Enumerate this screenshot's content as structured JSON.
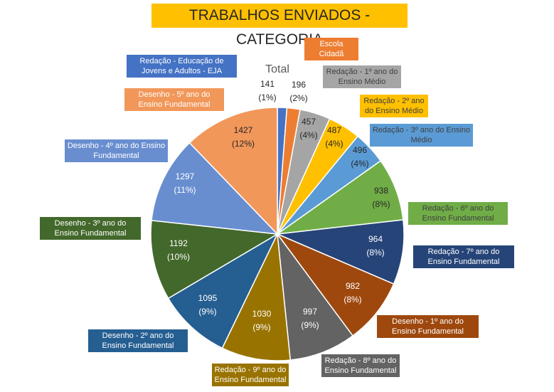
{
  "chart_data": {
    "type": "pie",
    "title": "TRABALHOS ENVIADOS - CATEGORIA",
    "series_name": "Total",
    "categories": [
      "Redação - Educação de Jovens e Adultos - EJA",
      "Escola Cidadã",
      "Redação - 1º ano do Ensino Médio",
      "Redação - 2º ano do Ensino Médio",
      "Redação - 3º ano do Ensino Médio",
      "Redação - 6º ano do Ensino Fundamental",
      "Redação - 7º ano do Ensino Fundamental",
      "Desenho - 1º ano do Ensino Fundamental",
      "Redação - 8º ano do Ensino Fundamental",
      "Redação - 9º ano do Ensino Fundamental",
      "Desenho - 2º ano do Ensino Fundamental",
      "Desenho - 3º ano do Ensino Fundamental",
      "Desenho - 4º ano do Ensino Fundamental",
      "Desenho - 5º ano do Ensino Fundamental"
    ],
    "values": [
      141,
      196,
      457,
      487,
      496,
      938,
      964,
      982,
      997,
      1030,
      1095,
      1192,
      1297,
      1427
    ],
    "value_labels": [
      "141\n(1%)",
      "196\n(2%)",
      "457\n(4%)",
      "487\n(4%)",
      "496\n(4%)",
      "938\n(8%)",
      "964\n(8%)",
      "982\n(8%)",
      "997\n(9%)",
      "1030\n(9%)",
      "1095\n(9%)",
      "1192\n(10%)",
      "1297\n(11%)",
      "1427\n(12%)"
    ],
    "colors": [
      "#4472c4",
      "#ed7d31",
      "#a5a5a5",
      "#ffc000",
      "#5b9bd5",
      "#70ad47",
      "#264478",
      "#9e480e",
      "#636363",
      "#997300",
      "#255e91",
      "#43682b",
      "#698ed0",
      "#f1975a"
    ]
  }
}
